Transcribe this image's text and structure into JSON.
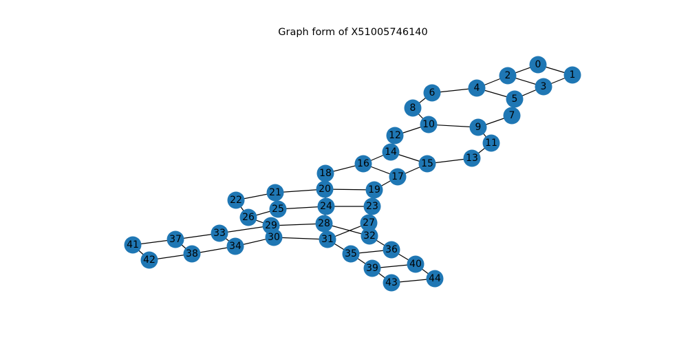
{
  "title": "Graph form of X51005746140",
  "node_color": "#1f77b4",
  "edge_color": "#000000",
  "nodes": [
    {
      "id": "0"
    },
    {
      "id": "1"
    },
    {
      "id": "2"
    },
    {
      "id": "3"
    },
    {
      "id": "4"
    },
    {
      "id": "5"
    },
    {
      "id": "6"
    },
    {
      "id": "7"
    },
    {
      "id": "8"
    },
    {
      "id": "9"
    },
    {
      "id": "10"
    },
    {
      "id": "11"
    },
    {
      "id": "12"
    },
    {
      "id": "13"
    },
    {
      "id": "14"
    },
    {
      "id": "15"
    },
    {
      "id": "16"
    },
    {
      "id": "17"
    },
    {
      "id": "18"
    },
    {
      "id": "19"
    },
    {
      "id": "20"
    },
    {
      "id": "21"
    },
    {
      "id": "22"
    },
    {
      "id": "23"
    },
    {
      "id": "24"
    },
    {
      "id": "25"
    },
    {
      "id": "26"
    },
    {
      "id": "27"
    },
    {
      "id": "28"
    },
    {
      "id": "29"
    },
    {
      "id": "30"
    },
    {
      "id": "31"
    },
    {
      "id": "32"
    },
    {
      "id": "33"
    },
    {
      "id": "34"
    },
    {
      "id": "35"
    },
    {
      "id": "36"
    },
    {
      "id": "37"
    },
    {
      "id": "38"
    },
    {
      "id": "39"
    },
    {
      "id": "40"
    },
    {
      "id": "41"
    },
    {
      "id": "42"
    },
    {
      "id": "43"
    },
    {
      "id": "44"
    }
  ],
  "edges": [
    [
      "0",
      "1"
    ],
    [
      "0",
      "2"
    ],
    [
      "1",
      "3"
    ],
    [
      "2",
      "3"
    ],
    [
      "2",
      "4"
    ],
    [
      "3",
      "5"
    ],
    [
      "4",
      "5"
    ],
    [
      "4",
      "6"
    ],
    [
      "5",
      "7"
    ],
    [
      "6",
      "8"
    ],
    [
      "7",
      "9"
    ],
    [
      "8",
      "10"
    ],
    [
      "9",
      "10"
    ],
    [
      "9",
      "11"
    ],
    [
      "10",
      "12"
    ],
    [
      "11",
      "13"
    ],
    [
      "12",
      "14"
    ],
    [
      "13",
      "15"
    ],
    [
      "14",
      "15"
    ],
    [
      "14",
      "16"
    ],
    [
      "15",
      "17"
    ],
    [
      "16",
      "17"
    ],
    [
      "16",
      "18"
    ],
    [
      "17",
      "19"
    ],
    [
      "19",
      "20"
    ],
    [
      "20",
      "21"
    ],
    [
      "18",
      "20"
    ],
    [
      "19",
      "23"
    ],
    [
      "20",
      "24"
    ],
    [
      "21",
      "22"
    ],
    [
      "21",
      "25"
    ],
    [
      "22",
      "26"
    ],
    [
      "23",
      "24"
    ],
    [
      "24",
      "25"
    ],
    [
      "24",
      "28"
    ],
    [
      "25",
      "26"
    ],
    [
      "26",
      "29"
    ],
    [
      "23",
      "27"
    ],
    [
      "27",
      "31"
    ],
    [
      "28",
      "29"
    ],
    [
      "28",
      "32"
    ],
    [
      "29",
      "30"
    ],
    [
      "29",
      "33"
    ],
    [
      "30",
      "31"
    ],
    [
      "30",
      "34"
    ],
    [
      "31",
      "35"
    ],
    [
      "32",
      "36"
    ],
    [
      "33",
      "34"
    ],
    [
      "33",
      "37"
    ],
    [
      "34",
      "38"
    ],
    [
      "35",
      "36"
    ],
    [
      "35",
      "39"
    ],
    [
      "36",
      "40"
    ],
    [
      "37",
      "38"
    ],
    [
      "37",
      "41"
    ],
    [
      "38",
      "42"
    ],
    [
      "39",
      "40"
    ],
    [
      "39",
      "43"
    ],
    [
      "40",
      "44"
    ],
    [
      "41",
      "42"
    ],
    [
      "43",
      "44"
    ]
  ]
}
